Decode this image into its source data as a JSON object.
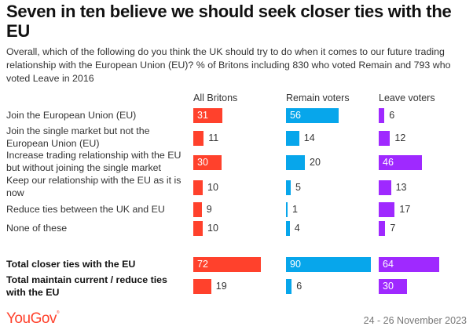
{
  "title": "Seven in ten believe we should seek closer ties with the EU",
  "subtitle": "Overall, which of the following do you think the UK should try to do when it comes to our future trading relationship with the European Union (EU)? % of Britons including 830 who voted Remain and 793 who voted Leave in 2016",
  "footer": {
    "logo": "YouGov",
    "date": "24 - 26 November 2023"
  },
  "colors": {
    "all": "#ff412c",
    "remain": "#07a6eb",
    "leave": "#9f29ff"
  },
  "chart_data": {
    "type": "bar",
    "orientation": "horizontal",
    "title": "Seven in ten believe we should seek closer ties with the EU",
    "categories": [
      "Join the European Union (EU)",
      "Join the single market but not the European Union (EU)",
      "Increase trading relationship with the EU but without joining the single market",
      "Keep our relationship with the EU as it is now",
      "Reduce ties between the UK and EU",
      "None of these",
      "Total closer ties with the EU",
      "Total maintain current / reduce ties with the EU"
    ],
    "bold_categories": [
      6,
      7
    ],
    "series": [
      {
        "name": "All Britons",
        "values": [
          31,
          11,
          30,
          10,
          9,
          10,
          72,
          19
        ]
      },
      {
        "name": "Remain voters",
        "values": [
          56,
          14,
          20,
          5,
          1,
          4,
          90,
          6
        ]
      },
      {
        "name": "Leave voters",
        "values": [
          6,
          12,
          46,
          13,
          17,
          7,
          64,
          30
        ]
      }
    ],
    "unit": "%",
    "xlim": [
      0,
      100
    ]
  }
}
